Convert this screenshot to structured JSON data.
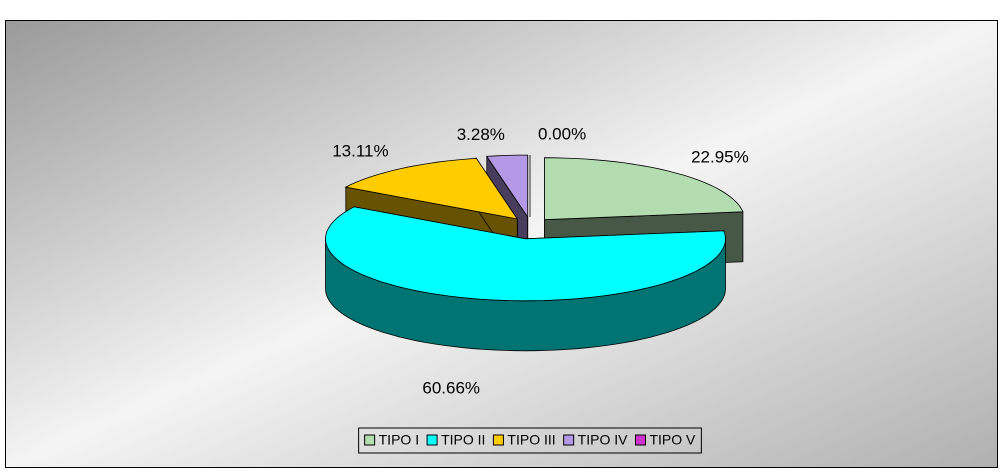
{
  "chart_data": {
    "type": "pie3d",
    "categories": [
      "TIPO I",
      "TIPO II",
      "TIPO III",
      "TIPO IV",
      "TIPO V"
    ],
    "values": [
      22.95,
      60.66,
      13.11,
      3.28,
      0.0
    ],
    "value_labels": [
      "22.95%",
      "60.66%",
      "13.11%",
      "3.28%",
      "0.00%"
    ],
    "colors": [
      "#b3dcb0",
      "#00ffff",
      "#ffcc00",
      "#b399e6",
      "#cc33cc"
    ],
    "legend": "bottom"
  }
}
